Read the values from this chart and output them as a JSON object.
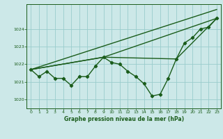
{
  "background_color": "#cce8e8",
  "grid_color": "#99cccc",
  "line_color": "#1a5c1a",
  "title": "Graphe pression niveau de la mer (hPa)",
  "xlim": [
    -0.5,
    23.5
  ],
  "ylim": [
    1019.5,
    1025.4
  ],
  "yticks": [
    1020,
    1021,
    1022,
    1023,
    1024
  ],
  "xticks": [
    0,
    1,
    2,
    3,
    4,
    5,
    6,
    7,
    8,
    9,
    10,
    11,
    12,
    13,
    14,
    15,
    16,
    17,
    18,
    19,
    20,
    21,
    22,
    23
  ],
  "series": [
    {
      "x": [
        0,
        1,
        2,
        3,
        4,
        5,
        6,
        7,
        8,
        9,
        10,
        11,
        12,
        13,
        14,
        15,
        16,
        17,
        18,
        19,
        20,
        21,
        22,
        23
      ],
      "y": [
        1021.7,
        1021.3,
        1021.6,
        1021.2,
        1021.2,
        1020.8,
        1021.3,
        1021.3,
        1021.9,
        1022.4,
        1022.1,
        1022.0,
        1021.6,
        1021.3,
        1020.9,
        1020.2,
        1020.3,
        1021.2,
        1022.3,
        1023.2,
        1023.5,
        1024.0,
        1024.1,
        1024.6
      ],
      "linewidth": 1.0,
      "marker": "D",
      "markersize": 2.2
    },
    {
      "x": [
        0,
        23
      ],
      "y": [
        1021.7,
        1025.1
      ],
      "linewidth": 1.0,
      "marker": null
    },
    {
      "x": [
        0,
        9,
        23
      ],
      "y": [
        1021.7,
        1022.4,
        1024.6
      ],
      "linewidth": 1.0,
      "marker": null
    },
    {
      "x": [
        0,
        9,
        18,
        23
      ],
      "y": [
        1021.7,
        1022.4,
        1022.3,
        1024.6
      ],
      "linewidth": 1.0,
      "marker": null
    }
  ]
}
